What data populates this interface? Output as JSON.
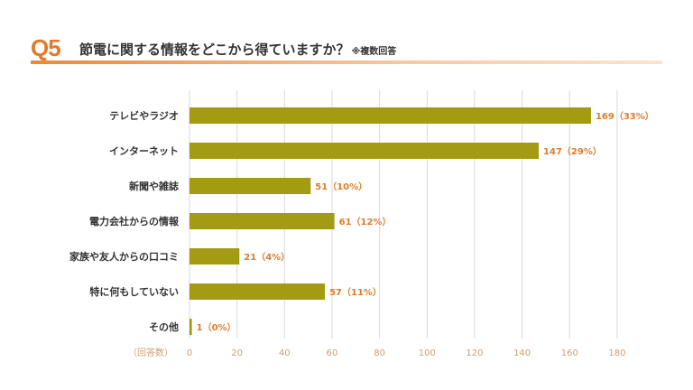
{
  "header": {
    "q_number": "Q5",
    "question": "節電に関する情報をどこから得ていますか？",
    "note": "※複数回答"
  },
  "colors": {
    "bar": "#a39b12",
    "accent": "#e07b2a",
    "grid": "#d9d9d9",
    "tick": "#c9a074"
  },
  "chart_data": {
    "type": "bar",
    "orientation": "horizontal",
    "categories": [
      "テレビやラジオ",
      "インターネット",
      "新聞や雑誌",
      "電力会社からの情報",
      "家族や友人からの口コミ",
      "特に何もしていない",
      "その他"
    ],
    "values": [
      169,
      147,
      51,
      61,
      21,
      57,
      1
    ],
    "value_labels": [
      "169（33%）",
      "147（29%）",
      "51（10%）",
      "61（12%）",
      "21（4%）",
      "57（11%）",
      "1（0%）"
    ],
    "x_ticks": [
      "0",
      "20",
      "40",
      "60",
      "80",
      "100",
      "120",
      "140",
      "160",
      "180"
    ],
    "xlim": [
      0,
      180
    ],
    "x_unit_label": "（回答数）",
    "grid": true
  }
}
